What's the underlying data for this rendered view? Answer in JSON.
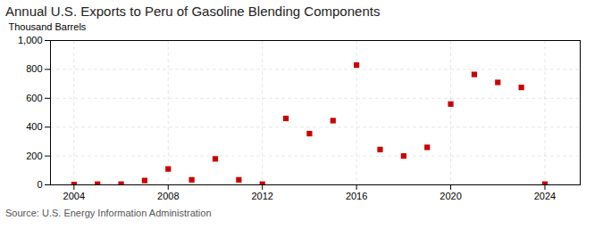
{
  "chart_data": {
    "type": "scatter",
    "title": "Annual U.S. Exports to Peru of Gasoline Blending Components",
    "ylabel": "Thousand Barrels",
    "source": "Source: U.S. Energy Information Administration",
    "x": [
      2004,
      2005,
      2006,
      2007,
      2008,
      2009,
      2010,
      2011,
      2012,
      2013,
      2014,
      2015,
      2016,
      2017,
      2018,
      2019,
      2020,
      2021,
      2022,
      2023,
      2024
    ],
    "values": [
      2,
      5,
      5,
      30,
      110,
      35,
      180,
      35,
      5,
      460,
      355,
      445,
      830,
      245,
      200,
      260,
      560,
      765,
      710,
      675,
      5
    ],
    "color": "#cc0000",
    "marker": "square",
    "xlim": [
      2003.0,
      2025.5
    ],
    "ylim": [
      0,
      1000
    ],
    "xticks": [
      2004,
      2008,
      2012,
      2016,
      2020,
      2024
    ],
    "yticks": [
      0,
      200,
      400,
      600,
      800,
      {
        "value": 1000,
        "label": "1,000"
      }
    ],
    "grid": true
  }
}
